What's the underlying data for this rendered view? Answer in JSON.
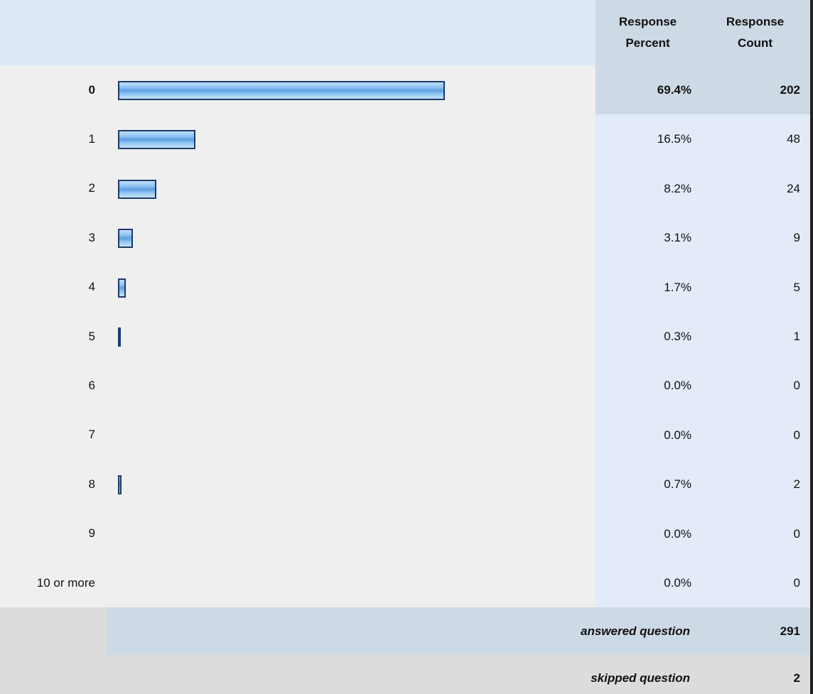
{
  "table": {
    "headers": [
      "Response Percent",
      "Response Count"
    ],
    "rows": [
      {
        "label": "0",
        "percent": {
          "value": 69.4,
          "label": "69.4%"
        },
        "count": 202
      },
      {
        "label": "1",
        "percent": {
          "value": 16.5,
          "label": "16.5%"
        },
        "count": 48
      },
      {
        "label": "2",
        "percent": {
          "value": 8.2,
          "label": "8.2%"
        },
        "count": 24
      },
      {
        "label": "3",
        "percent": {
          "value": 3.1,
          "label": "3.1%"
        },
        "count": 9
      },
      {
        "label": "4",
        "percent": {
          "value": 1.7,
          "label": "1.7%"
        },
        "count": 5
      },
      {
        "label": "5",
        "percent": {
          "value": 0.3,
          "label": "0.3%"
        },
        "count": 1
      },
      {
        "label": "6",
        "percent": {
          "value": 0.0,
          "label": "0.0%"
        },
        "count": 0
      },
      {
        "label": "7",
        "percent": {
          "value": 0.0,
          "label": "0.0%"
        },
        "count": 0
      },
      {
        "label": "8",
        "percent": {
          "value": 0.7,
          "label": "0.7%"
        },
        "count": 2
      },
      {
        "label": "9",
        "percent": {
          "value": 0.0,
          "label": "0.0%"
        },
        "count": 0
      },
      {
        "label": "10 or more",
        "percent": {
          "value": 0.0,
          "label": "0.0%"
        },
        "count": 0
      }
    ],
    "answered": {
      "label": "answered question",
      "count": 291
    },
    "skipped": {
      "label": "skipped question",
      "count": 2
    }
  }
}
